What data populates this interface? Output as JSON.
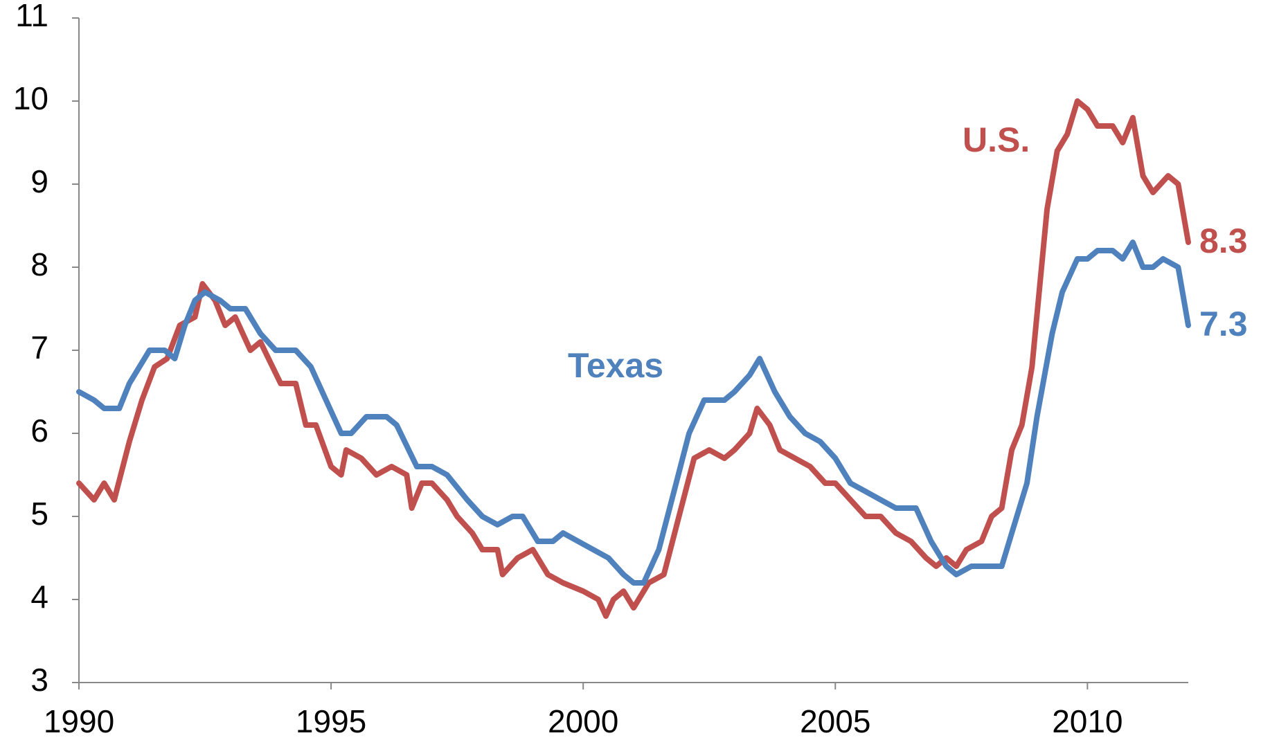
{
  "chart_data": {
    "type": "line",
    "xlim": [
      1990,
      2012
    ],
    "xticks": [
      1990,
      1995,
      2000,
      2005,
      2010
    ],
    "ylim": [
      3,
      11
    ],
    "yticks": [
      3,
      4,
      5,
      6,
      7,
      8,
      9,
      10,
      11
    ],
    "grid": false,
    "annotations": [
      {
        "text": "U.S.",
        "color": "#c0504d"
      },
      {
        "text": "Texas",
        "color": "#4f81bd"
      }
    ],
    "series": [
      {
        "name": "U.S.",
        "color": "#c0504d",
        "x": [
          1990.0,
          1990.3,
          1990.5,
          1990.7,
          1991.0,
          1991.25,
          1991.5,
          1991.75,
          1992.0,
          1992.3,
          1992.45,
          1992.7,
          1992.9,
          1993.1,
          1993.4,
          1993.6,
          1994.0,
          1994.3,
          1994.5,
          1994.7,
          1995.0,
          1995.2,
          1995.3,
          1995.6,
          1995.9,
          1996.2,
          1996.5,
          1996.6,
          1996.8,
          1997.0,
          1997.3,
          1997.5,
          1997.8,
          1998.0,
          1998.3,
          1998.4,
          1998.7,
          1999.0,
          1999.3,
          1999.6,
          2000.0,
          2000.3,
          2000.45,
          2000.6,
          2000.8,
          2001.0,
          2001.3,
          2001.6,
          2001.9,
          2002.2,
          2002.5,
          2002.8,
          2003.0,
          2003.3,
          2003.45,
          2003.7,
          2003.9,
          2004.2,
          2004.5,
          2004.8,
          2005.0,
          2005.3,
          2005.6,
          2005.9,
          2006.2,
          2006.5,
          2006.8,
          2007.0,
          2007.2,
          2007.4,
          2007.6,
          2007.9,
          2008.1,
          2008.3,
          2008.5,
          2008.7,
          2008.9,
          2009.2,
          2009.4,
          2009.6,
          2009.8,
          2010.0,
          2010.2,
          2010.5,
          2010.7,
          2010.9,
          2011.1,
          2011.3,
          2011.6,
          2011.8,
          2012.0
        ],
        "values": [
          5.4,
          5.2,
          5.4,
          5.2,
          5.9,
          6.4,
          6.8,
          6.9,
          7.3,
          7.4,
          7.8,
          7.6,
          7.3,
          7.4,
          7.0,
          7.1,
          6.6,
          6.6,
          6.1,
          6.1,
          5.6,
          5.5,
          5.8,
          5.7,
          5.5,
          5.6,
          5.5,
          5.1,
          5.4,
          5.4,
          5.2,
          5.0,
          4.8,
          4.6,
          4.6,
          4.3,
          4.5,
          4.6,
          4.3,
          4.2,
          4.1,
          4.0,
          3.8,
          4.0,
          4.1,
          3.9,
          4.2,
          4.3,
          5.0,
          5.7,
          5.8,
          5.7,
          5.8,
          6.0,
          6.3,
          6.1,
          5.8,
          5.7,
          5.6,
          5.4,
          5.4,
          5.2,
          5.0,
          5.0,
          4.8,
          4.7,
          4.5,
          4.4,
          4.5,
          4.4,
          4.6,
          4.7,
          5.0,
          5.1,
          5.8,
          6.1,
          6.8,
          8.7,
          9.4,
          9.6,
          10.0,
          9.9,
          9.7,
          9.7,
          9.5,
          9.8,
          9.1,
          8.9,
          9.1,
          9.0,
          8.3
        ]
      },
      {
        "name": "Texas",
        "color": "#4f81bd",
        "x": [
          1990.0,
          1990.3,
          1990.5,
          1990.8,
          1991.0,
          1991.4,
          1991.7,
          1991.9,
          1992.1,
          1992.3,
          1992.5,
          1992.8,
          1993.0,
          1993.3,
          1993.6,
          1993.9,
          1994.3,
          1994.6,
          1994.9,
          1995.2,
          1995.4,
          1995.7,
          1996.1,
          1996.3,
          1996.7,
          1997.0,
          1997.3,
          1997.7,
          1998.0,
          1998.3,
          1998.6,
          1998.8,
          1999.1,
          1999.4,
          1999.6,
          1999.9,
          2000.2,
          2000.5,
          2000.8,
          2001.0,
          2001.2,
          2001.5,
          2001.8,
          2002.1,
          2002.4,
          2002.8,
          2003.0,
          2003.3,
          2003.5,
          2003.8,
          2004.1,
          2004.4,
          2004.7,
          2005.0,
          2005.3,
          2005.6,
          2005.9,
          2006.2,
          2006.6,
          2006.9,
          2007.2,
          2007.4,
          2007.7,
          2008.0,
          2008.3,
          2008.5,
          2008.8,
          2009.0,
          2009.3,
          2009.5,
          2009.8,
          2010.0,
          2010.2,
          2010.5,
          2010.7,
          2010.9,
          2011.1,
          2011.3,
          2011.5,
          2011.8,
          2012.0
        ],
        "values": [
          6.5,
          6.4,
          6.3,
          6.3,
          6.6,
          7.0,
          7.0,
          6.9,
          7.3,
          7.6,
          7.7,
          7.6,
          7.5,
          7.5,
          7.2,
          7.0,
          7.0,
          6.8,
          6.4,
          6.0,
          6.0,
          6.2,
          6.2,
          6.1,
          5.6,
          5.6,
          5.5,
          5.2,
          5.0,
          4.9,
          5.0,
          5.0,
          4.7,
          4.7,
          4.8,
          4.7,
          4.6,
          4.5,
          4.3,
          4.2,
          4.2,
          4.6,
          5.3,
          6.0,
          6.4,
          6.4,
          6.5,
          6.7,
          6.9,
          6.5,
          6.2,
          6.0,
          5.9,
          5.7,
          5.4,
          5.3,
          5.2,
          5.1,
          5.1,
          4.7,
          4.4,
          4.3,
          4.4,
          4.4,
          4.4,
          4.8,
          5.4,
          6.2,
          7.2,
          7.7,
          8.1,
          8.1,
          8.2,
          8.2,
          8.1,
          8.3,
          8.0,
          8.0,
          8.1,
          8.0,
          7.3
        ]
      }
    ]
  }
}
